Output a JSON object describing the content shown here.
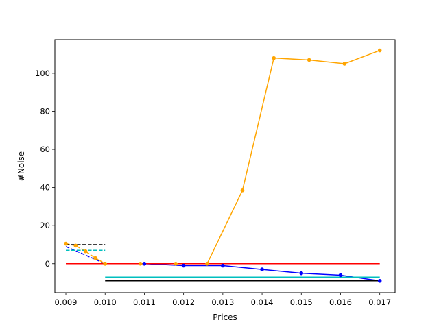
{
  "chart_data": {
    "type": "line",
    "title": "",
    "xlabel": "Prices",
    "ylabel": "#Noise",
    "xlim": [
      0.00872,
      0.01739
    ],
    "ylim": [
      -15.2,
      117.6
    ],
    "xticks": [
      "0.009",
      "0.010",
      "0.011",
      "0.012",
      "0.013",
      "0.014",
      "0.015",
      "0.016",
      "0.017"
    ],
    "yticks": [
      "0",
      "20",
      "40",
      "60",
      "80",
      "100"
    ],
    "grid": false,
    "legend": "none",
    "series": [
      {
        "color": "#0000ff",
        "style": "solid-with-dot-markers",
        "x": [
          0.01,
          0.011,
          0.012,
          0.013,
          0.014,
          0.015,
          0.016,
          0.017
        ],
        "y": [
          0,
          0,
          -1,
          -1,
          -3,
          -5,
          -6,
          -9
        ]
      },
      {
        "color": "#0000ff",
        "style": "dashed",
        "x": [
          0.009,
          0.01
        ],
        "y": [
          9,
          0
        ]
      },
      {
        "color": "#ffa500",
        "style": "solid-with-dot-markers",
        "x": [
          0.01,
          0.0109,
          0.0118,
          0.0126,
          0.0135,
          0.0143,
          0.0152,
          0.0161,
          0.017
        ],
        "y": [
          0,
          0,
          0,
          0,
          38.5,
          108,
          107,
          105,
          112
        ]
      },
      {
        "color": "#ffa500",
        "style": "dashed-with-dot-markers",
        "x": [
          0.009,
          0.00925,
          0.0095,
          0.00975,
          0.01
        ],
        "y": [
          10.5,
          9.5,
          6.5,
          3,
          0
        ]
      },
      {
        "color": "#ff0000",
        "style": "solid",
        "x": [
          0.009,
          0.017
        ],
        "y": [
          0,
          0
        ]
      },
      {
        "color": "#00bfbf",
        "style": "solid",
        "x": [
          0.01,
          0.017
        ],
        "y": [
          -7,
          -7
        ]
      },
      {
        "color": "#000000",
        "style": "solid",
        "x": [
          0.01,
          0.017
        ],
        "y": [
          -9,
          -9
        ]
      },
      {
        "color": "#000000",
        "style": "dashed",
        "x": [
          0.009,
          0.01
        ],
        "y": [
          10,
          10
        ]
      },
      {
        "color": "#00bfbf",
        "style": "dashed",
        "x": [
          0.009,
          0.01
        ],
        "y": [
          7,
          7
        ]
      }
    ]
  }
}
